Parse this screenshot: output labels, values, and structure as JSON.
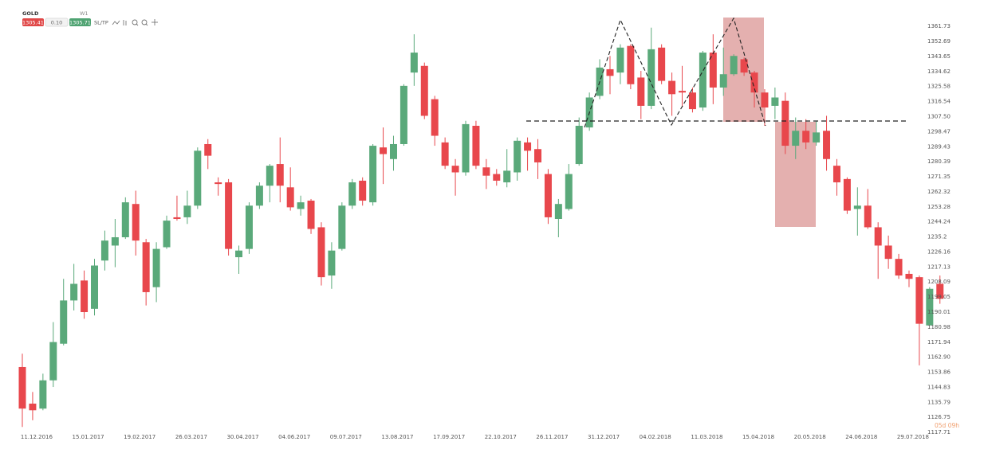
{
  "toolbar": {
    "symbol": "GOLD",
    "timeframe": "W1",
    "bid": "1305.41",
    "spread": "0.10",
    "ask": "1305.71",
    "sltp": "SL/TP"
  },
  "countdown": "05d 09h",
  "chart_data": {
    "type": "candlestick",
    "up_color": "#5aa97a",
    "down_color": "#e8474c",
    "grid": false,
    "categories": [
      null,
      "11.12.2016",
      null,
      null,
      null,
      null,
      "15.01.2017",
      null,
      null,
      null,
      null,
      "19.02.2017",
      null,
      null,
      null,
      null,
      "26.03.2017",
      null,
      null,
      null,
      null,
      "30.04.2017",
      null,
      null,
      null,
      null,
      "04.06.2017",
      null,
      null,
      null,
      null,
      "09.07.2017",
      null,
      null,
      null,
      null,
      "13.08.2017",
      null,
      null,
      null,
      null,
      "17.09.2017",
      null,
      null,
      null,
      null,
      "22.10.2017",
      null,
      null,
      null,
      null,
      "26.11.2017",
      null,
      null,
      null,
      null,
      "31.12.2017",
      null,
      null,
      null,
      null,
      "04.02.2018",
      null,
      null,
      null,
      null,
      "11.03.2018",
      null,
      null,
      null,
      null,
      "15.04.2018",
      null,
      null,
      null,
      null,
      "20.05.2018",
      null,
      null,
      null,
      null,
      "24.06.2018",
      null,
      null,
      null,
      null,
      "29.07.2018",
      null,
      null,
      null
    ],
    "open": [
      1157,
      1135,
      1132,
      1149,
      1171,
      1197,
      1209,
      1192,
      1221,
      1230,
      1235,
      1255,
      1232,
      1205,
      1229,
      1247,
      1247,
      1254,
      1291,
      1268,
      1268,
      1223,
      1228,
      1254,
      1266,
      1279,
      1265,
      1252,
      1257,
      1241,
      1212,
      1228,
      1254,
      1269,
      1256,
      1289,
      1282,
      1291,
      1334,
      1338,
      1318,
      1292,
      1278,
      1274,
      1302,
      1277,
      1273,
      1268,
      1274,
      1292,
      1288,
      1273,
      1246,
      1252,
      1279,
      1301,
      1320,
      1336,
      1334,
      1350,
      1331,
      1314,
      1349,
      1329,
      1323,
      1322,
      1313,
      1346,
      1325,
      1333,
      1342,
      1334,
      1322,
      1314,
      1317,
      1290,
      1299,
      1292,
      1299,
      1278,
      1270,
      1252,
      1254,
      1241,
      1230,
      1222,
      1213,
      1211,
      1182,
      1207
    ],
    "high": [
      1165,
      1142,
      1153,
      1184,
      1210,
      1219,
      1215,
      1222,
      1239,
      1246,
      1259,
      1263,
      1234,
      1232,
      1248,
      1260,
      1263,
      1289,
      1294,
      1271,
      1270,
      1230,
      1256,
      1268,
      1279,
      1295,
      1277,
      1260,
      1258,
      1244,
      1232,
      1256,
      1270,
      1271,
      1291,
      1301,
      1296,
      1327,
      1357,
      1340,
      1320,
      1295,
      1282,
      1305,
      1305,
      1282,
      1276,
      1288,
      1295,
      1295,
      1294,
      1276,
      1258,
      1279,
      1307,
      1322,
      1342,
      1344,
      1351,
      1351,
      1335,
      1361,
      1351,
      1334,
      1338,
      1325,
      1347,
      1357,
      1349,
      1345,
      1343,
      1335,
      1324,
      1325,
      1322,
      1307,
      1306,
      1305,
      1308,
      1282,
      1271,
      1265,
      1264,
      1244,
      1236,
      1225,
      1215,
      1212,
      1205,
      1212
    ],
    "low": [
      1121,
      1125,
      1131,
      1145,
      1170,
      1191,
      1186,
      1188,
      1215,
      1217,
      1234,
      1224,
      1194,
      1196,
      1228,
      1245,
      1243,
      1252,
      1276,
      1260,
      1224,
      1213,
      1225,
      1252,
      1256,
      1256,
      1251,
      1248,
      1237,
      1206,
      1204,
      1227,
      1252,
      1254,
      1254,
      1267,
      1275,
      1290,
      1326,
      1306,
      1290,
      1276,
      1260,
      1272,
      1276,
      1264,
      1266,
      1265,
      1269,
      1275,
      1270,
      1243,
      1235,
      1251,
      1278,
      1299,
      1318,
      1321,
      1327,
      1324,
      1306,
      1312,
      1327,
      1308,
      1313,
      1310,
      1311,
      1315,
      1320,
      1332,
      1332,
      1313,
      1302,
      1306,
      1285,
      1282,
      1288,
      1290,
      1275,
      1260,
      1249,
      1236,
      1240,
      1210,
      1216,
      1210,
      1205,
      1158,
      1182,
      1195
    ],
    "close": [
      1132,
      1131,
      1149,
      1172,
      1197,
      1207,
      1190,
      1218,
      1233,
      1235,
      1256,
      1233,
      1202,
      1228,
      1245,
      1246,
      1254,
      1287,
      1284,
      1267,
      1228,
      1227,
      1254,
      1266,
      1278,
      1266,
      1253,
      1256,
      1240,
      1211,
      1227,
      1254,
      1268,
      1257,
      1290,
      1285,
      1291,
      1326,
      1346,
      1308,
      1296,
      1278,
      1274,
      1303,
      1278,
      1272,
      1269,
      1275,
      1293,
      1287,
      1280,
      1247,
      1255,
      1273,
      1302,
      1319,
      1337,
      1332,
      1349,
      1327,
      1314,
      1348,
      1329,
      1321,
      1322,
      1312,
      1346,
      1325,
      1333,
      1344,
      1334,
      1322,
      1313,
      1319,
      1290,
      1299,
      1292,
      1298,
      1282,
      1268,
      1251,
      1254,
      1241,
      1230,
      1222,
      1212,
      1210,
      1183,
      1204,
      1198
    ],
    "ylim": [
      1112,
      1369
    ],
    "yticks": [
      1117.71,
      1126.75,
      1135.79,
      1144.83,
      1153.86,
      {
        "value": 1162.9,
        "label": "1162.90"
      },
      1171.94,
      1180.98,
      1190.01,
      1199.05,
      1208.09,
      1217.13,
      1226.16,
      1235.2,
      1244.24,
      1253.28,
      1262.32,
      1271.35,
      1280.39,
      1289.43,
      1298.47,
      {
        "value": 1307.5,
        "label": "1307.50"
      },
      1316.54,
      1325.58,
      1334.62,
      1343.65,
      1352.69,
      1361.73
    ]
  }
}
